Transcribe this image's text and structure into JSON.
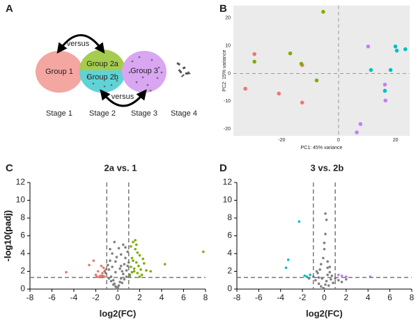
{
  "panel_labels": [
    "A",
    "B",
    "C",
    "D"
  ],
  "diagram": {
    "groups": [
      "Group 1",
      "Group 2a",
      "Group 2b",
      "Group 3"
    ],
    "stages": [
      "Stage 1",
      "Stage 2",
      "Stage 3",
      "Stage 4"
    ],
    "comparisons": [
      "versus",
      "versus"
    ]
  },
  "chart_data": [
    {
      "type": "scatter",
      "xlabel": "PC1: 45% variance",
      "ylabel": "PC2: 15% variance",
      "xlim": [
        -37,
        25
      ],
      "ylim": [
        -22.5,
        24.5
      ],
      "xticks": [
        -20,
        0,
        20
      ],
      "yticks": [
        -20,
        -10,
        0,
        10,
        20
      ],
      "background": "#ebebeb",
      "zero_lines": true,
      "series": [
        {
          "color": "#f0776b",
          "x": [
            -32.8,
            -29.6,
            -21,
            -12.8,
            -12.8
          ],
          "y": [
            -5.5,
            7,
            -7.25,
            -10.5,
            3
          ]
        },
        {
          "color": "#7cae00",
          "x": [
            -29.6,
            -17,
            -13.1,
            -7.7,
            -5.4
          ],
          "y": [
            4.25,
            7.25,
            3.5,
            -2.5,
            22.25
          ]
        },
        {
          "color": "#00bfc4",
          "x": [
            11.4,
            18.3,
            20,
            20.5,
            23.5,
            16.3
          ],
          "y": [
            1.25,
            1.25,
            9.75,
            8.25,
            8.75,
            -6.25
          ]
        },
        {
          "color": "#c77cff",
          "x": [
            10.4,
            16.3,
            16.5,
            7.7,
            6.4
          ],
          "y": [
            9.75,
            -4,
            -9.75,
            -18.25,
            -21.25
          ]
        }
      ]
    },
    {
      "type": "scatter",
      "title": "2a vs. 1",
      "xlabel": "log2(FC)",
      "ylabel": "-log10(padj)",
      "xlim": [
        -8,
        8
      ],
      "ylim": [
        0,
        12
      ],
      "xticks": [
        -8,
        -6,
        -4,
        -2,
        0,
        2,
        4,
        6,
        8
      ],
      "yticks": [
        0,
        2,
        4,
        6,
        8,
        10,
        12
      ],
      "vlines": [
        -1,
        1
      ],
      "hline": 1.3,
      "series": [
        {
          "color": "#808080",
          "x": [
            -1.4,
            -1.2,
            -1.1,
            -0.9,
            -0.8,
            -0.7,
            -0.6,
            -0.5,
            -0.4,
            -0.3,
            -0.2,
            -0.1,
            0,
            0.1,
            0.2,
            0.3,
            0.4,
            0.5,
            0.6,
            0.7,
            0.8,
            0.9,
            1.0,
            1.1,
            -0.5,
            -0.3,
            -0.1,
            0.1,
            0.3,
            0.5,
            -0.6,
            -0.2,
            0.2,
            0.6,
            -0.4,
            0,
            0.4,
            0.8,
            -0.8,
            0.9,
            -0.2,
            0.3,
            -0.7,
            0.7,
            -1.3,
            1.3
          ],
          "y": [
            1.5,
            2.0,
            1.8,
            2.7,
            2.2,
            3.2,
            1.4,
            2.5,
            1.0,
            0.6,
            0.3,
            0.1,
            0.2,
            0.4,
            0.8,
            1.2,
            2.0,
            1.7,
            2.8,
            3.5,
            2.1,
            4.2,
            3.0,
            1.6,
            4.0,
            5.3,
            3.6,
            4.6,
            2.6,
            5.0,
            0.9,
            1.9,
            2.3,
            1.1,
            0.5,
            0.05,
            0.7,
            1.4,
            1.2,
            2.6,
            3.1,
            3.9,
            4.5,
            4.7,
            1.4,
            1.9
          ]
        },
        {
          "color": "#f0776b",
          "x": [
            -1.2,
            -1.4,
            -1.6,
            -1.8,
            -2.0,
            -1.3,
            -1.5,
            -1.7,
            -2.2,
            -2.6,
            -4.7,
            -1.9,
            -1.1,
            -1.4
          ],
          "y": [
            1.4,
            1.8,
            1.5,
            2.0,
            1.6,
            2.4,
            2.6,
            1.35,
            3.2,
            2.7,
            1.9,
            1.4,
            2.2,
            1.35
          ]
        },
        {
          "color": "#7cae00",
          "x": [
            1.1,
            1.2,
            1.3,
            1.4,
            1.5,
            1.6,
            1.7,
            1.8,
            1.9,
            2.0,
            2.1,
            2.2,
            2.4,
            2.6,
            1.2,
            1.4,
            1.6,
            1.8,
            2.0,
            1.3,
            1.5,
            1.7,
            4.3,
            7.8,
            3.0,
            2.3
          ],
          "y": [
            1.5,
            2.5,
            3.5,
            5.3,
            2.0,
            4.5,
            3.0,
            1.8,
            2.6,
            3.8,
            2.2,
            1.6,
            2.9,
            2.1,
            4.8,
            3.2,
            5.5,
            4.1,
            1.4,
            1.9,
            2.3,
            5.0,
            2.8,
            4.2,
            2.0,
            3.4
          ]
        }
      ]
    },
    {
      "type": "scatter",
      "title": "3 vs. 2b",
      "xlabel": "log2(FC)",
      "ylabel": "-log10(padj)",
      "xlim": [
        -8,
        8
      ],
      "ylim": [
        0,
        12
      ],
      "xticks": [
        -8,
        -6,
        -4,
        -2,
        0,
        2,
        4,
        6,
        8
      ],
      "yticks": [
        0,
        2,
        4,
        6,
        8,
        10,
        12
      ],
      "vlines": [
        -1,
        1
      ],
      "hline": 1.3,
      "series": [
        {
          "color": "#808080",
          "x": [
            -1.0,
            -0.8,
            -0.6,
            -0.5,
            -0.4,
            -0.3,
            -0.2,
            -0.1,
            0,
            0.1,
            0.2,
            0.3,
            0.4,
            0.5,
            0.6,
            0.8,
            1.0,
            -0.7,
            -0.3,
            0.3,
            0.7,
            0,
            0.1,
            0.2,
            0.1,
            0,
            -0.1,
            0.3,
            -0.5,
            0.5,
            1.3,
            1.6,
            -1.4,
            2.0
          ],
          "y": [
            1.4,
            1.0,
            1.8,
            0.6,
            2.2,
            0.3,
            1.2,
            0.1,
            0.05,
            0.5,
            0.9,
            1.6,
            0.4,
            2.5,
            1.1,
            0.7,
            1.2,
            2.0,
            2.8,
            2.4,
            1.5,
            4.5,
            8.5,
            7.8,
            6.2,
            5.2,
            3.5,
            3.1,
            1.3,
            1.9,
            1.0,
            0.8,
            1.2,
            1.1
          ]
        },
        {
          "color": "#00bfc4",
          "x": [
            -2.3,
            -3.3,
            -3.5,
            -1.8,
            -1.6,
            -1.3
          ],
          "y": [
            7.6,
            3.3,
            2.4,
            1.5,
            1.4,
            1.6
          ]
        },
        {
          "color": "#c77cff",
          "x": [
            1.6,
            2.0,
            1.3,
            4.2
          ],
          "y": [
            1.5,
            1.4,
            1.6,
            1.4
          ]
        }
      ]
    }
  ]
}
